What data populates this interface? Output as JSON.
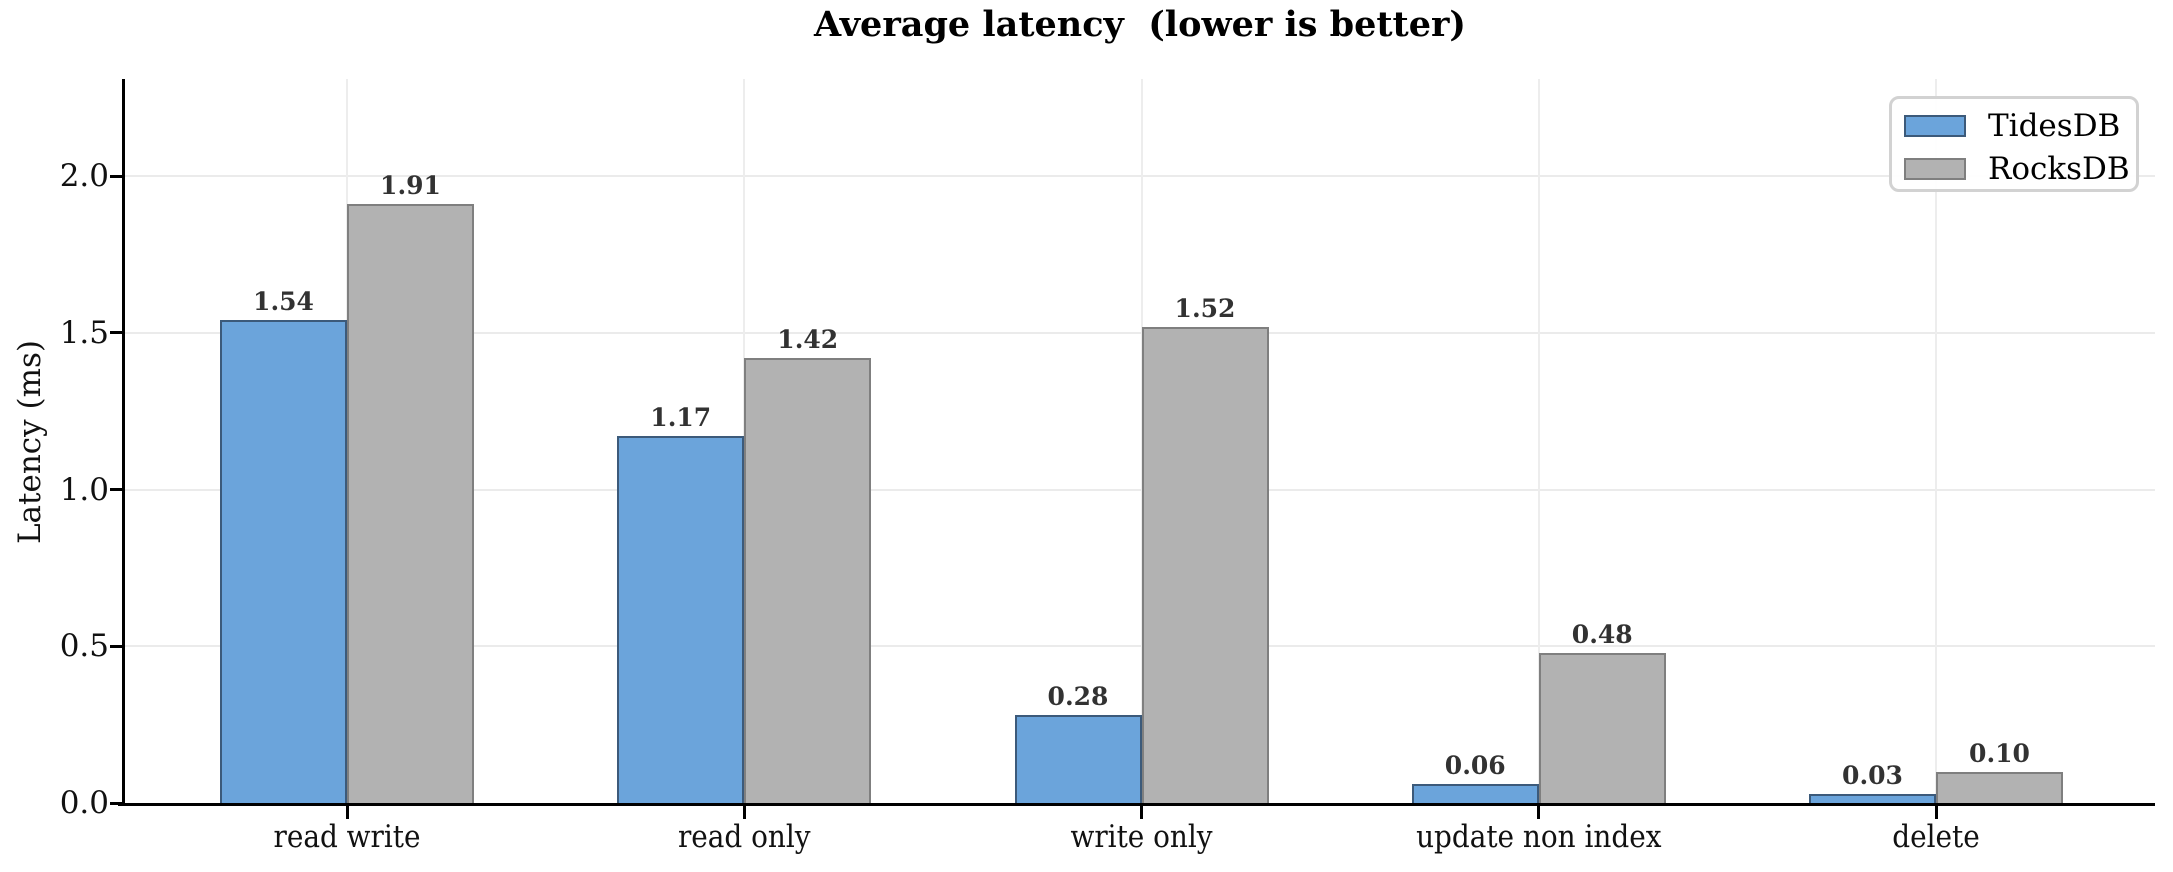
{
  "chart_data": {
    "type": "bar",
    "title": "Average latency  (lower is better)",
    "ylabel": "Latency (ms)",
    "xlabel": "",
    "categories": [
      "read write",
      "read only",
      "write only",
      "update non index",
      "delete"
    ],
    "series": [
      {
        "name": "TidesDB",
        "color": "#6ba4db",
        "edge_color": "#3c5a7a",
        "values": [
          1.54,
          1.17,
          0.28,
          0.06,
          0.03
        ],
        "labels": [
          "1.54",
          "1.17",
          "0.28",
          "0.06",
          "0.03"
        ]
      },
      {
        "name": "RocksDB",
        "color": "#b2b2b2",
        "edge_color": "#7f7f7f",
        "values": [
          1.91,
          1.42,
          1.52,
          0.48,
          0.1
        ],
        "labels": [
          "1.91",
          "1.42",
          "1.52",
          "0.48",
          "0.10"
        ]
      }
    ],
    "yticks": [
      0,
      0.5,
      1,
      1.5,
      2
    ],
    "ytick_labels": [
      "0.0",
      "0.5",
      "1.0",
      "1.5",
      "2.0"
    ],
    "ylim": [
      0,
      2.31
    ],
    "grid": true,
    "legend_position": "upper right"
  }
}
